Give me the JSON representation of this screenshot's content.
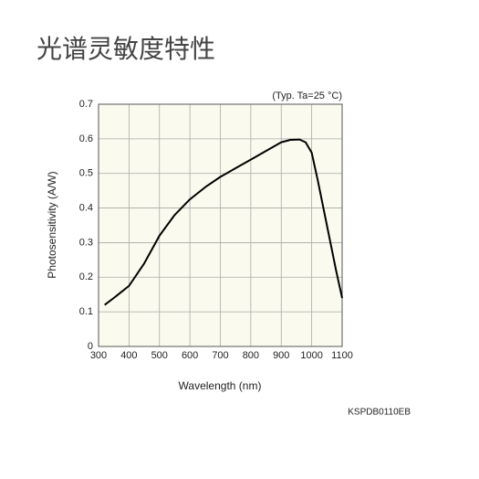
{
  "chart_data": {
    "type": "line",
    "title": "光谱灵敏度特性",
    "annotation": "(Typ. Ta=25 °C)",
    "x_label": "Wavelength (nm)",
    "y_label": "Photosensitivity (A/W)",
    "footnote": "KSPDB0110EB",
    "x": [
      320,
      350,
      400,
      450,
      500,
      550,
      600,
      650,
      700,
      750,
      800,
      850,
      900,
      930,
      960,
      980,
      1000,
      1020,
      1050,
      1080,
      1100
    ],
    "values": [
      0.12,
      0.14,
      0.175,
      0.24,
      0.32,
      0.38,
      0.425,
      0.46,
      0.49,
      0.515,
      0.54,
      0.565,
      0.59,
      0.597,
      0.598,
      0.59,
      0.56,
      0.48,
      0.35,
      0.22,
      0.14
    ],
    "color": "#000000",
    "xlim": [
      300,
      1100
    ],
    "xticks": [
      300,
      400,
      500,
      600,
      700,
      800,
      900,
      1000,
      1100
    ],
    "ylim": [
      0,
      0.7
    ],
    "yticks": [
      0,
      0.1,
      0.2,
      0.3,
      0.4,
      0.5,
      0.6,
      0.7
    ],
    "grid": true
  }
}
